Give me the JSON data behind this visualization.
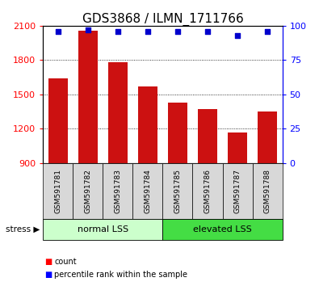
{
  "title": "GDS3868 / ILMN_1711766",
  "categories": [
    "GSM591781",
    "GSM591782",
    "GSM591783",
    "GSM591784",
    "GSM591785",
    "GSM591786",
    "GSM591787",
    "GSM591788"
  ],
  "bar_values": [
    1640,
    2060,
    1780,
    1570,
    1430,
    1370,
    1165,
    1350
  ],
  "percentile_values": [
    96,
    97,
    96,
    96,
    96,
    96,
    93,
    96
  ],
  "bar_color": "#cc1111",
  "dot_color": "#0000cc",
  "ylim_left": [
    900,
    2100
  ],
  "ylim_right": [
    0,
    100
  ],
  "yticks_left": [
    900,
    1200,
    1500,
    1800,
    2100
  ],
  "yticks_right": [
    0,
    25,
    50,
    75,
    100
  ],
  "group1_label": "normal LSS",
  "group2_label": "elevated LSS",
  "group1_count": 4,
  "group2_count": 4,
  "stress_label": "stress",
  "legend_count_label": "count",
  "legend_pct_label": "percentile rank within the sample",
  "group1_color": "#ccffcc",
  "group2_color": "#44dd44",
  "bar_bg_color": "#d8d8d8",
  "grid_color": "#000000",
  "title_fontsize": 11,
  "tick_fontsize": 8,
  "label_fontsize": 8,
  "cat_fontsize": 6.5
}
